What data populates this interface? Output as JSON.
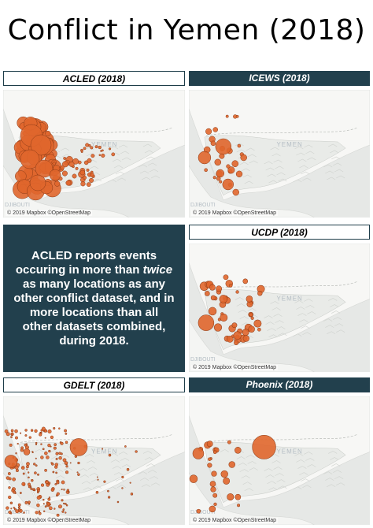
{
  "title": "Conflict in Yemen (2018)",
  "colors": {
    "marker": "#e0662c",
    "marker_stroke": "#8a3a16",
    "dark_panel": "#22404d"
  },
  "map_labels": {
    "yemen": "YEMEN",
    "djibouti": "DJIBOUTI"
  },
  "copyright": "© 2019 Mapbox ©OpenStreetMap",
  "panels": {
    "acled": {
      "label": "ACLED (2018)"
    },
    "icews": {
      "label": "ICEWS (2018)"
    },
    "ucdp": {
      "label": "UCDP (2018)"
    },
    "gdelt": {
      "label": "GDELT (2018)"
    },
    "phoenix": {
      "label": "Phoenix (2018)"
    }
  },
  "summary": {
    "part1": "ACLED reports events occuring in more than ",
    "emphasis": "twice",
    "part2": " as many locations as any other conflict dataset, and in more locations than all other datasets combined, during 2018."
  }
}
